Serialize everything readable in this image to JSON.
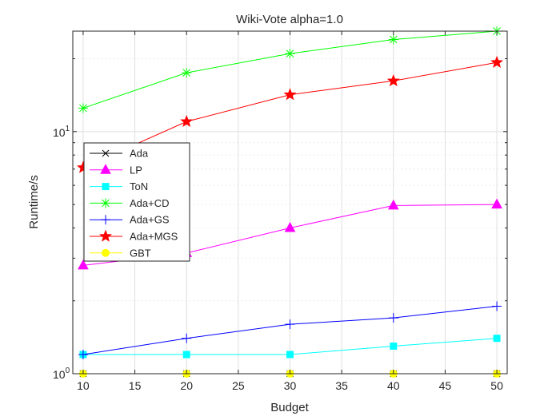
{
  "chart_data": {
    "type": "line",
    "title": "Wiki-Vote alpha=1.0",
    "xlabel": "Budget",
    "ylabel": "Runtime/s",
    "x": [
      10,
      20,
      30,
      40,
      50
    ],
    "xlim": [
      9,
      51
    ],
    "ylim": [
      1,
      26
    ],
    "yscale": "log",
    "xticks": [
      "10",
      "15",
      "20",
      "25",
      "30",
      "35",
      "40",
      "45",
      "50"
    ],
    "yticks": [
      "10",
      "10"
    ],
    "yticks_exp": [
      "0",
      "1"
    ],
    "grid": true,
    "legend_position": "left",
    "series": [
      {
        "name": "Ada",
        "color": "#000000",
        "marker": "x",
        "values": [
          1.0,
          1.0,
          1.0,
          1.0,
          1.0
        ]
      },
      {
        "name": "LP",
        "color": "#ff00ff",
        "marker": "triangle",
        "values": [
          2.8,
          3.15,
          4.0,
          4.95,
          5.0
        ]
      },
      {
        "name": "ToN",
        "color": "#00ffff",
        "marker": "square",
        "values": [
          1.2,
          1.2,
          1.2,
          1.3,
          1.4
        ]
      },
      {
        "name": "Ada+CD",
        "color": "#00ff00",
        "marker": "asterisk",
        "values": [
          12.5,
          17.5,
          21,
          24,
          26
        ]
      },
      {
        "name": "Ada+GS",
        "color": "#0000ff",
        "marker": "plus",
        "values": [
          1.2,
          1.4,
          1.6,
          1.7,
          1.9
        ]
      },
      {
        "name": "Ada+MGS",
        "color": "#ff0000",
        "marker": "star",
        "values": [
          7.1,
          11,
          14.2,
          16.2,
          19.3
        ]
      },
      {
        "name": "GBT",
        "color": "#ffff00",
        "marker": "circle",
        "values": [
          1.0,
          1.0,
          1.0,
          1.0,
          1.0
        ]
      }
    ]
  }
}
